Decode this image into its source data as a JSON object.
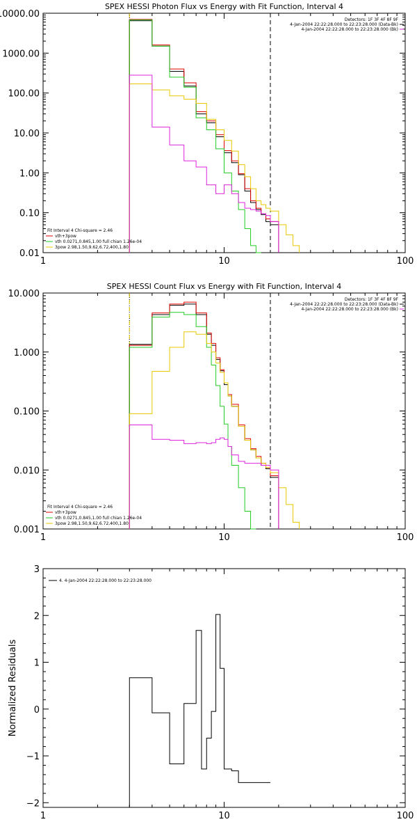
{
  "chart_data": [
    {
      "type": "line",
      "title": "SPEX HESSI Photon Flux vs Energy with Fit Function, Interval 4",
      "xscale": "log",
      "yscale": "log",
      "xlim": [
        1,
        100
      ],
      "ylim": [
        0.01,
        10000
      ],
      "xticks": [
        {
          "v": 1,
          "label": "1"
        },
        {
          "v": 10,
          "label": "10"
        },
        {
          "v": 100,
          "label": "100"
        }
      ],
      "yticks": [
        {
          "v": 0.01,
          "label": "0.01"
        },
        {
          "v": 0.1,
          "label": "0.10"
        },
        {
          "v": 1,
          "label": "1.00"
        },
        {
          "v": 10,
          "label": "10.00"
        },
        {
          "v": 100,
          "label": "100.00"
        },
        {
          "v": 1000,
          "label": "1000.00"
        },
        {
          "v": 10000,
          "label": "10000.00"
        }
      ],
      "vlines": [
        {
          "x": 3.0,
          "style": "dotted",
          "color": "#000000"
        },
        {
          "x": 3.0,
          "style": "dashed",
          "color": "#e8c800"
        },
        {
          "x": 18.0,
          "style": "dashed",
          "color": "#000000"
        }
      ],
      "legend_top_right": [
        {
          "text": "Detectors: 1F 3F 4F 8F 9F",
          "color": "#000000"
        },
        {
          "text": "4-Jan-2004 22:22:28.000 to 22:23:28.000 (Data-Bk)",
          "color": "#000000"
        },
        {
          "text": "4-Jan-2004 22:22:28.000 to 22:23:28.000 (Bk)",
          "color": "#dd22dd"
        }
      ],
      "legend_bottom_left": [
        {
          "text": "Fit Interval  4   Chi-square = 2.46",
          "color": "#000000"
        },
        {
          "text": "vth+3pow",
          "color": "#e00000"
        },
        {
          "text": "vth 0.0271,0.845,1.00  full chian 1.26e-04",
          "color": "#22cc22"
        },
        {
          "text": "3pow 2.98,1.50,9.62,6.72,400,1.80",
          "color": "#e8c800"
        }
      ],
      "edges": [
        3.0,
        3.5,
        4.0,
        4.5,
        5.0,
        5.5,
        6.0,
        6.5,
        7.0,
        7.5,
        8.0,
        8.5,
        9.0,
        9.5,
        10.0,
        11.0,
        12.0,
        13.0,
        14.0,
        15.0,
        16.0,
        17.0,
        18.0,
        20.0,
        22.0,
        24.0,
        26.0
      ],
      "series": [
        {
          "name": "Data-Bk",
          "color": "#000000",
          "values": [
            6500,
            6500,
            1500,
            1500,
            350,
            350,
            150,
            150,
            30,
            30,
            18,
            18,
            8,
            8,
            3.2,
            1.8,
            0.9,
            0.35,
            0.18,
            0.12,
            0.09,
            0.06,
            0.05,
            null,
            null,
            null
          ]
        },
        {
          "name": "vth+3pow",
          "color": "#e00000",
          "values": [
            7000,
            7000,
            1600,
            1600,
            400,
            400,
            180,
            180,
            34,
            34,
            20,
            20,
            9,
            9,
            3.6,
            2.0,
            0.95,
            0.4,
            0.2,
            0.13,
            0.095,
            0.07,
            0.06,
            null,
            null,
            null
          ]
        },
        {
          "name": "vth",
          "color": "#22cc22",
          "values": [
            6800,
            6800,
            1500,
            1500,
            250,
            250,
            140,
            140,
            24,
            24,
            12,
            12,
            4,
            4,
            1.0,
            0.35,
            0.12,
            0.04,
            0.015,
            0.01,
            null,
            null,
            null,
            null,
            null,
            null
          ]
        },
        {
          "name": "3pow",
          "color": "#e8c800",
          "values": [
            170,
            170,
            120,
            120,
            85,
            85,
            70,
            70,
            55,
            55,
            22,
            22,
            12,
            12,
            6.5,
            3.5,
            1.6,
            0.8,
            0.4,
            0.2,
            0.16,
            0.13,
            0.11,
            0.05,
            0.028,
            0.015
          ]
        },
        {
          "name": "Bk",
          "color": "#dd22dd",
          "values": [
            280,
            280,
            14,
            14,
            5,
            5,
            2,
            2,
            1.4,
            1.4,
            0.5,
            0.5,
            0.3,
            0.3,
            0.5,
            0.3,
            0.18,
            0.13,
            0.12,
            0.11,
            0.095,
            0.085,
            0.06,
            null,
            null,
            null
          ]
        }
      ]
    },
    {
      "type": "line",
      "title": "SPEX HESSI Count Flux vs Energy with Fit Function, Interval 4",
      "xscale": "log",
      "yscale": "log",
      "xlim": [
        1,
        100
      ],
      "ylim": [
        0.001,
        10
      ],
      "xticks": [
        {
          "v": 1,
          "label": "1"
        },
        {
          "v": 10,
          "label": "10"
        },
        {
          "v": 100,
          "label": "100"
        }
      ],
      "yticks": [
        {
          "v": 0.001,
          "label": "0.001"
        },
        {
          "v": 0.01,
          "label": "0.010"
        },
        {
          "v": 0.1,
          "label": "0.100"
        },
        {
          "v": 1,
          "label": "1.000"
        },
        {
          "v": 10,
          "label": "10.000"
        }
      ],
      "vlines": [
        {
          "x": 3.0,
          "style": "dotted",
          "color": "#000000"
        },
        {
          "x": 3.0,
          "style": "dashed",
          "color": "#e8c800"
        },
        {
          "x": 18.0,
          "style": "dashed",
          "color": "#000000"
        }
      ],
      "legend_top_right": [
        {
          "text": "Detectors: 1F 3F 4F 8F 9F",
          "color": "#000000"
        },
        {
          "text": "4-Jan-2004 22:22:28.000 to 22:23:28.000 (Data-Bk)",
          "color": "#000000"
        },
        {
          "text": "4-Jan-2004 22:22:28.000 to 22:23:28.000 (Bk)",
          "color": "#dd22dd"
        }
      ],
      "legend_bottom_left": [
        {
          "text": "Fit Interval  4   Chi-square = 2.46",
          "color": "#000000"
        },
        {
          "text": "vth+3pow",
          "color": "#e00000"
        },
        {
          "text": "vth 0.0271,0.845,1.00  full chian 1.26e-04",
          "color": "#22cc22"
        },
        {
          "text": "3pow 2.98,1.50,9.62,6.72,400,1.80",
          "color": "#e8c800"
        }
      ],
      "edges": [
        3.0,
        4.0,
        5.0,
        6.0,
        7.0,
        8.0,
        8.5,
        9.0,
        9.5,
        10.0,
        10.5,
        11.0,
        12.0,
        13.0,
        14.0,
        15.0,
        16.0,
        17.0,
        18.0,
        20.0,
        22.0,
        24.0,
        26.0
      ],
      "series": [
        {
          "name": "Data-Bk",
          "color": "#000000",
          "values": [
            1.35,
            4.3,
            6.2,
            6.5,
            4.3,
            2.0,
            1.3,
            0.75,
            0.48,
            0.28,
            0.18,
            0.12,
            0.055,
            0.032,
            0.022,
            0.016,
            0.012,
            0.0105,
            0.0075,
            null,
            null,
            null
          ]
        },
        {
          "name": "vth+3pow",
          "color": "#e00000",
          "values": [
            1.3,
            4.6,
            6.5,
            7.0,
            4.6,
            2.1,
            1.4,
            0.8,
            0.5,
            0.3,
            0.19,
            0.13,
            0.058,
            0.034,
            0.023,
            0.017,
            0.013,
            0.011,
            0.008,
            null,
            null,
            null
          ]
        },
        {
          "name": "vth",
          "color": "#22cc22",
          "values": [
            1.2,
            3.9,
            4.7,
            4.3,
            2.7,
            1.2,
            0.6,
            0.27,
            0.12,
            0.06,
            0.025,
            0.012,
            0.005,
            0.002,
            0.001,
            null,
            null,
            null,
            null,
            null,
            null,
            null
          ]
        },
        {
          "name": "3pow",
          "color": "#e8c800",
          "values": [
            0.09,
            0.47,
            1.2,
            2.2,
            2.0,
            1.4,
            1.0,
            0.65,
            0.45,
            0.3,
            0.18,
            0.12,
            0.055,
            0.032,
            0.022,
            0.016,
            0.013,
            0.011,
            0.009,
            0.005,
            0.0026,
            0.0013
          ]
        },
        {
          "name": "Bk",
          "color": "#dd22dd",
          "values": [
            0.058,
            0.033,
            0.032,
            0.028,
            0.029,
            0.028,
            0.029,
            0.033,
            0.035,
            0.033,
            0.025,
            0.018,
            0.014,
            0.013,
            0.013,
            0.013,
            0.012,
            0.012,
            0.01,
            null,
            null,
            null
          ]
        }
      ]
    },
    {
      "type": "line",
      "title": "",
      "xscale": "log",
      "yscale": "linear",
      "xlim": [
        1,
        100
      ],
      "ylim": [
        -2.1,
        3
      ],
      "ylabel": "Normalized Residuals",
      "xticks": [
        {
          "v": 1,
          "label": "1"
        },
        {
          "v": 10,
          "label": "10"
        },
        {
          "v": 100,
          "label": "100"
        }
      ],
      "yticks": [
        {
          "v": -2,
          "label": "−2"
        },
        {
          "v": -1,
          "label": "−1"
        },
        {
          "v": 0,
          "label": "0"
        },
        {
          "v": 1,
          "label": "1"
        },
        {
          "v": 2,
          "label": "2"
        },
        {
          "v": 3,
          "label": "3"
        }
      ],
      "legend_top_left": [
        {
          "text": "4.  4-Jan-2004 22:22:28.000 to 22:23:28.000",
          "color": "#000000"
        }
      ],
      "edges": [
        3.0,
        4.0,
        5.0,
        6.0,
        7.0,
        7.5,
        8.0,
        8.5,
        9.0,
        9.5,
        10.0,
        11.0,
        12.0,
        13.0,
        14.0,
        15.0,
        16.0,
        17.0,
        18.0
      ],
      "series": [
        {
          "name": "",
          "color": "#000000",
          "values": [
            0.67,
            -0.08,
            -1.17,
            0.12,
            1.68,
            -1.28,
            -0.62,
            -0.05,
            2.02,
            0.87,
            -1.28,
            -1.32,
            -1.57,
            -1.57,
            -1.57,
            -1.57,
            -1.57,
            -1.57
          ]
        }
      ],
      "drop_start": true
    }
  ]
}
